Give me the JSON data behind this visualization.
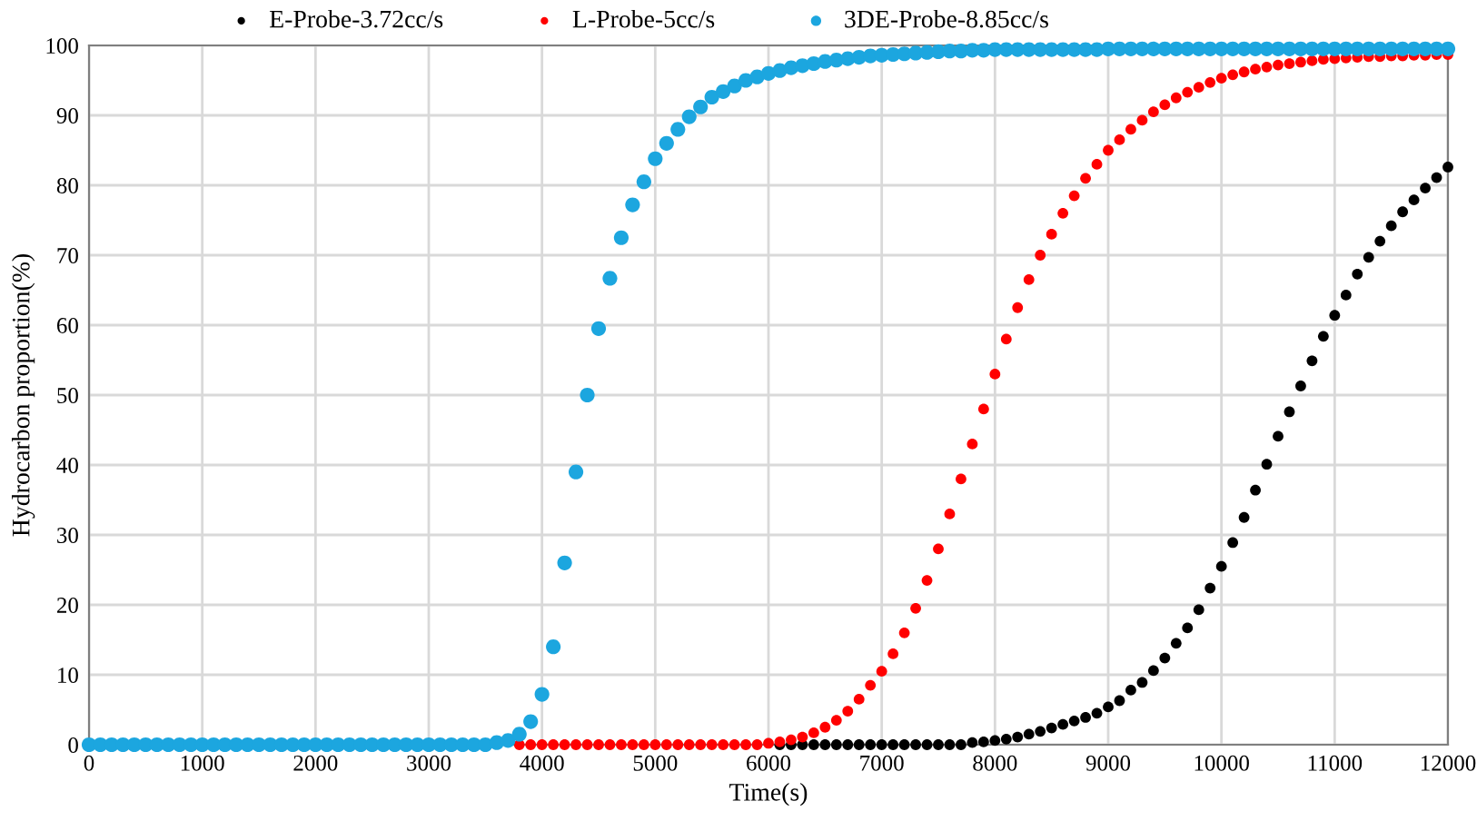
{
  "chart_data": {
    "type": "scatter",
    "xlabel": "Time(s)",
    "ylabel": "Hydrocarbon proportion(%)",
    "x": [
      0,
      100,
      200,
      300,
      400,
      500,
      600,
      700,
      800,
      900,
      1000,
      1100,
      1200,
      1300,
      1400,
      1500,
      1600,
      1700,
      1800,
      1900,
      2000,
      2100,
      2200,
      2300,
      2400,
      2500,
      2600,
      2700,
      2800,
      2900,
      3000,
      3100,
      3200,
      3300,
      3400,
      3500,
      3600,
      3700,
      3800,
      3900,
      4000,
      4100,
      4200,
      4300,
      4400,
      4500,
      4600,
      4700,
      4800,
      4900,
      5000,
      5100,
      5200,
      5300,
      5400,
      5500,
      5600,
      5700,
      5800,
      5900,
      6000,
      6100,
      6200,
      6300,
      6400,
      6500,
      6600,
      6700,
      6800,
      6900,
      7000,
      7100,
      7200,
      7300,
      7400,
      7500,
      7600,
      7700,
      7800,
      7900,
      8000,
      8100,
      8200,
      8300,
      8400,
      8500,
      8600,
      8700,
      8800,
      8900,
      9000,
      9100,
      9200,
      9300,
      9400,
      9500,
      9600,
      9700,
      9800,
      9900,
      10000,
      10100,
      10200,
      10300,
      10400,
      10500,
      10600,
      10700,
      10800,
      10900,
      11000,
      11100,
      11200,
      11300,
      11400,
      11500,
      11600,
      11700,
      11800,
      11900,
      12000
    ],
    "series": [
      {
        "name": "E-Probe-3.72cc/s",
        "color": "#000000",
        "values": [
          null,
          null,
          null,
          null,
          null,
          null,
          null,
          null,
          null,
          null,
          null,
          null,
          null,
          null,
          null,
          null,
          null,
          null,
          null,
          null,
          null,
          null,
          null,
          null,
          null,
          null,
          null,
          null,
          null,
          null,
          null,
          null,
          null,
          null,
          null,
          null,
          null,
          null,
          null,
          null,
          null,
          null,
          null,
          null,
          null,
          null,
          null,
          null,
          null,
          null,
          null,
          null,
          null,
          null,
          null,
          null,
          null,
          null,
          null,
          null,
          null,
          0,
          0,
          0,
          0,
          0,
          0,
          0,
          0,
          0,
          0,
          0,
          0,
          0,
          0,
          0,
          0,
          0,
          0.3,
          0.4,
          0.6,
          0.8,
          1.1,
          1.5,
          1.9,
          2.4,
          2.9,
          3.4,
          3.9,
          4.5,
          5.4,
          6.3,
          7.8,
          8.9,
          10.6,
          12.4,
          14.5,
          16.7,
          19.3,
          22.4,
          25.5,
          28.9,
          32.5,
          36.4,
          40.1,
          44.1,
          47.6,
          51.3,
          54.9,
          58.4,
          61.4,
          64.3,
          67.3,
          69.7,
          72,
          74.2,
          76.2,
          77.9,
          79.6,
          81.1,
          82.6
        ]
      },
      {
        "name": "L-Probe-5cc/s",
        "color": "#ff0000",
        "values": [
          null,
          null,
          null,
          null,
          null,
          null,
          null,
          null,
          null,
          null,
          null,
          null,
          null,
          null,
          null,
          null,
          null,
          null,
          null,
          null,
          null,
          null,
          null,
          null,
          null,
          null,
          null,
          null,
          null,
          null,
          null,
          null,
          null,
          null,
          null,
          null,
          null,
          null,
          0,
          0,
          0,
          0,
          0,
          0,
          0,
          0,
          0,
          0,
          0,
          0,
          0,
          0,
          0,
          0,
          0,
          0,
          0,
          0,
          0,
          0,
          0.2,
          0.4,
          0.7,
          1.1,
          1.7,
          2.5,
          3.5,
          4.8,
          6.5,
          8.5,
          10.5,
          13,
          16,
          19.5,
          23.5,
          28,
          33,
          38,
          43,
          48,
          53,
          58,
          62.5,
          66.5,
          70,
          73,
          76,
          78.5,
          81,
          83,
          85,
          86.5,
          88,
          89.3,
          90.5,
          91.5,
          92.5,
          93.3,
          94,
          94.7,
          95.3,
          95.8,
          96.2,
          96.6,
          96.9,
          97.2,
          97.4,
          97.6,
          97.8,
          98,
          98.1,
          98.2,
          98.3,
          98.4,
          98.4,
          98.5,
          98.5,
          98.6,
          98.6,
          98.7,
          98.7
        ]
      },
      {
        "name": "3DE-Probe-8.85cc/s",
        "color": "#1ca6df",
        "values": [
          0,
          0,
          0,
          0,
          0,
          0,
          0,
          0,
          0,
          0,
          0,
          0,
          0,
          0,
          0,
          0,
          0,
          0,
          0,
          0,
          0,
          0,
          0,
          0,
          0,
          0,
          0,
          0,
          0,
          0,
          0,
          0,
          0,
          0,
          0,
          0,
          0.3,
          0.6,
          1.5,
          3.3,
          7.2,
          14,
          26,
          39,
          50,
          59.5,
          66.7,
          72.5,
          77.2,
          80.5,
          83.8,
          86,
          88,
          89.8,
          91.2,
          92.6,
          93.4,
          94.2,
          95,
          95.5,
          96,
          96.4,
          96.8,
          97.1,
          97.4,
          97.7,
          97.9,
          98.1,
          98.3,
          98.5,
          98.6,
          98.7,
          98.8,
          98.9,
          99,
          99.1,
          99.2,
          99.2,
          99.3,
          99.3,
          99.4,
          99.4,
          99.4,
          99.4,
          99.4,
          99.4,
          99.4,
          99.4,
          99.4,
          99.4,
          99.5,
          99.5,
          99.5,
          99.5,
          99.5,
          99.5,
          99.5,
          99.5,
          99.5,
          99.5,
          99.5,
          99.5,
          99.5,
          99.5,
          99.5,
          99.5,
          99.5,
          99.5,
          99.5,
          99.5,
          99.5,
          99.5,
          99.5,
          99.5,
          99.5,
          99.5,
          99.5,
          99.5,
          99.5,
          99.5,
          99.5
        ]
      }
    ],
    "xlim": [
      0,
      12000
    ],
    "xticks": [
      0,
      1000,
      2000,
      3000,
      4000,
      5000,
      6000,
      7000,
      8000,
      9000,
      10000,
      11000,
      12000
    ],
    "ylim": [
      0,
      100
    ],
    "yticks": [
      0,
      10,
      20,
      30,
      40,
      50,
      60,
      70,
      80,
      90,
      100
    ],
    "grid": true,
    "legend": "top",
    "marker": "circle"
  }
}
